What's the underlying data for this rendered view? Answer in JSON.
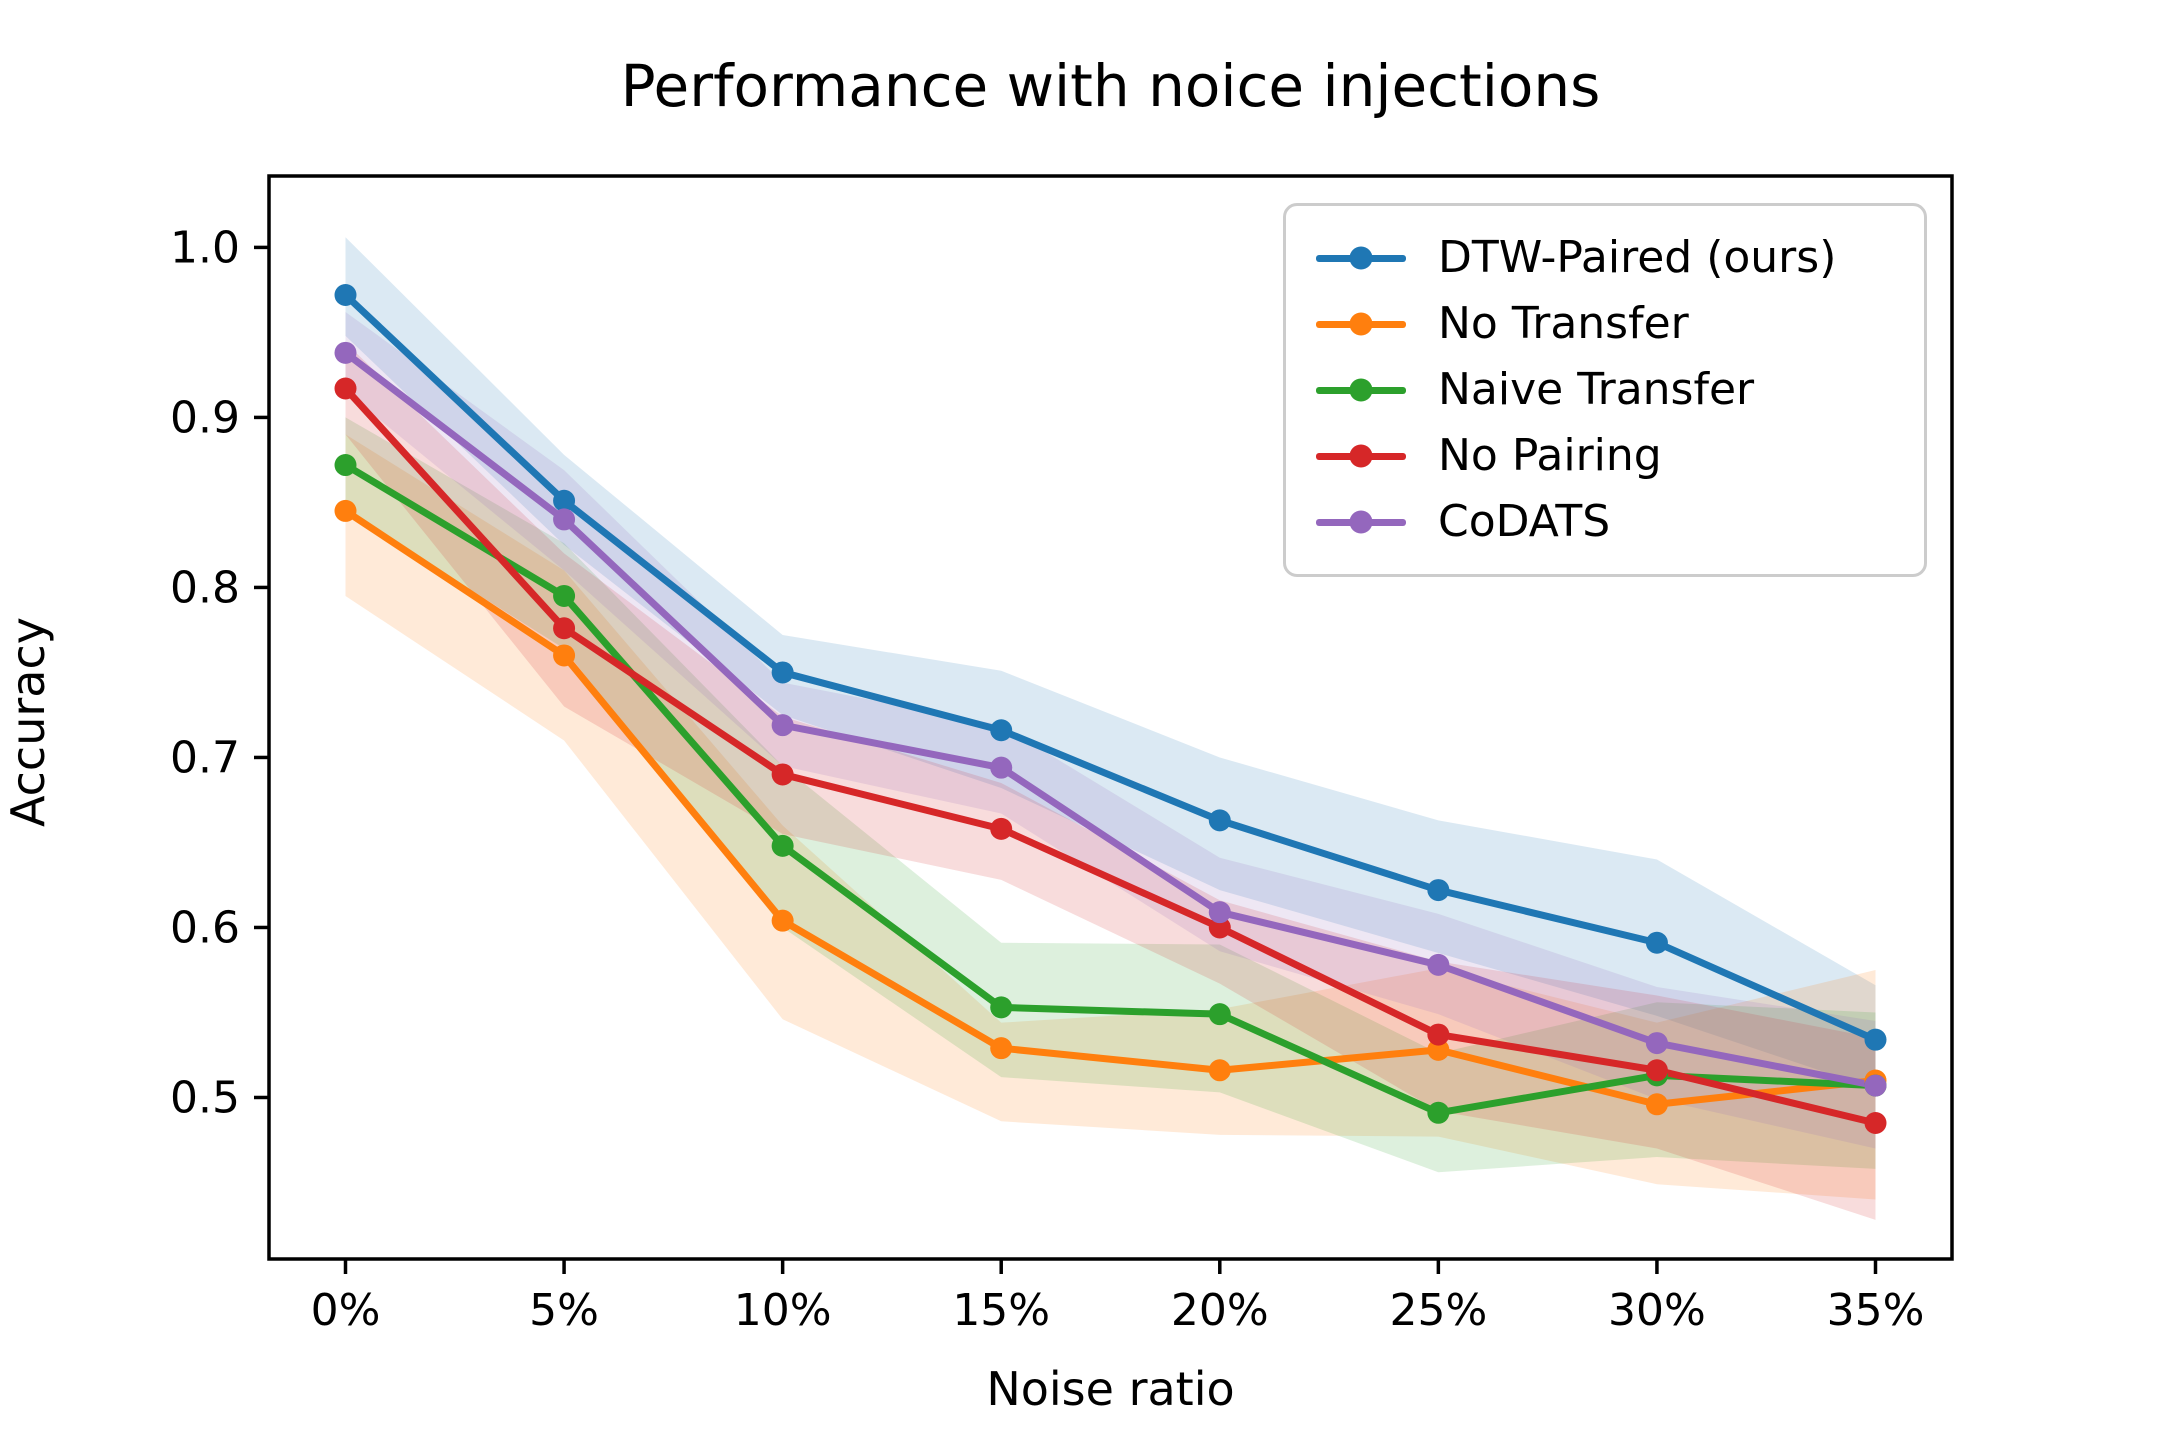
{
  "chart_data": {
    "type": "line",
    "title": "Performance with noice injections",
    "xlabel": "Noise ratio",
    "ylabel": "Accuracy",
    "categories": [
      "0%",
      "5%",
      "10%",
      "15%",
      "20%",
      "25%",
      "30%",
      "35%"
    ],
    "ytick_labels": [
      "1.0",
      "0.9",
      "0.8",
      "0.7",
      "0.6",
      "0.5"
    ],
    "ytick_values": [
      1.0,
      0.9,
      0.8,
      0.7,
      0.6,
      0.5
    ],
    "ylim": [
      0.405,
      1.042
    ],
    "x_margin": 0.35,
    "grid": false,
    "legend_position": "upper right",
    "band_opacity": 0.16,
    "series": [
      {
        "name": "DTW-Paired  (ours)",
        "color": "#1f77b4",
        "values": [
          0.972,
          0.851,
          0.75,
          0.716,
          0.663,
          0.622,
          0.591,
          0.534
        ],
        "band_lower": [
          0.948,
          0.825,
          0.725,
          0.682,
          0.622,
          0.585,
          0.548,
          0.505
        ],
        "band_upper": [
          1.006,
          0.878,
          0.772,
          0.751,
          0.7,
          0.663,
          0.64,
          0.566
        ]
      },
      {
        "name": "No Transfer",
        "color": "#ff7f0e",
        "values": [
          0.845,
          0.76,
          0.604,
          0.529,
          0.516,
          0.528,
          0.496,
          0.51
        ],
        "band_lower": [
          0.795,
          0.71,
          0.546,
          0.486,
          0.478,
          0.477,
          0.449,
          0.44
        ],
        "band_upper": [
          0.89,
          0.81,
          0.66,
          0.544,
          0.552,
          0.576,
          0.544,
          0.575
        ]
      },
      {
        "name": "Naive Transfer",
        "color": "#2ca02c",
        "values": [
          0.872,
          0.795,
          0.648,
          0.553,
          0.549,
          0.491,
          0.513,
          0.507
        ],
        "band_lower": [
          0.845,
          0.764,
          0.6,
          0.512,
          0.503,
          0.456,
          0.465,
          0.458
        ],
        "band_upper": [
          0.9,
          0.826,
          0.695,
          0.591,
          0.59,
          0.526,
          0.556,
          0.55
        ]
      },
      {
        "name": "No Pairing",
        "color": "#d62728",
        "values": [
          0.917,
          0.776,
          0.69,
          0.658,
          0.6,
          0.537,
          0.516,
          0.485
        ],
        "band_lower": [
          0.89,
          0.73,
          0.655,
          0.628,
          0.567,
          0.492,
          0.47,
          0.428
        ],
        "band_upper": [
          0.944,
          0.82,
          0.724,
          0.685,
          0.616,
          0.58,
          0.56,
          0.535
        ]
      },
      {
        "name": "CoDATS",
        "color": "#9467bd",
        "values": [
          0.938,
          0.84,
          0.719,
          0.694,
          0.609,
          0.578,
          0.532,
          0.507
        ],
        "band_lower": [
          0.915,
          0.81,
          0.695,
          0.667,
          0.586,
          0.549,
          0.499,
          0.47
        ],
        "band_upper": [
          0.962,
          0.869,
          0.744,
          0.719,
          0.641,
          0.608,
          0.565,
          0.545
        ]
      }
    ]
  }
}
